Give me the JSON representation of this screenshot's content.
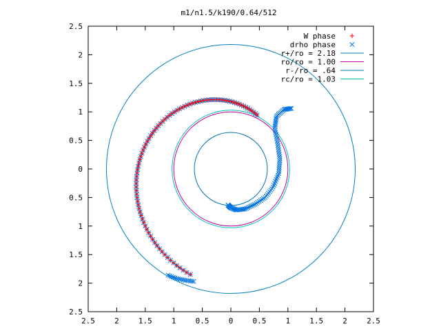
{
  "chart_data": {
    "type": "scatter",
    "title": "m1/n1.5/k190/0.64/512",
    "xlim": [
      -2.5,
      2.5
    ],
    "ylim": [
      -2.5,
      2.5
    ],
    "xticks": [
      "2.5",
      "2",
      "1.5",
      "1",
      "0.5",
      "0",
      "0.5",
      "1",
      "1.5",
      "2",
      "2.5"
    ],
    "yticks": [
      "2.5",
      "2",
      "1.5",
      "1",
      "0.5",
      "0",
      "0.5",
      "1",
      "1.5",
      "2",
      "2.5"
    ],
    "grid": false,
    "legend_position": "top-right",
    "series": [
      {
        "name": "W phase",
        "kind": "points",
        "marker": "plus",
        "color": "#ff0000",
        "arc": {
          "r_start": 1.05,
          "r_end": 1.98,
          "theta_start_deg": 64,
          "theta_end_deg": 249,
          "count": 90
        }
      },
      {
        "name": "drho phase",
        "kind": "points",
        "marker": "cross",
        "color": "#0072e0",
        "hook": [
          [
            -0.05,
            -0.63
          ],
          [
            0.0,
            -0.68
          ],
          [
            0.1,
            -0.72
          ],
          [
            0.25,
            -0.7
          ],
          [
            0.42,
            -0.62
          ],
          [
            0.6,
            -0.5
          ],
          [
            0.74,
            -0.32
          ],
          [
            0.84,
            -0.08
          ],
          [
            0.86,
            0.18
          ],
          [
            0.82,
            0.45
          ],
          [
            0.77,
            0.72
          ],
          [
            0.8,
            0.92
          ],
          [
            0.93,
            1.04
          ],
          [
            1.06,
            1.06
          ]
        ],
        "tail": [
          [
            -1.1,
            -1.86
          ],
          [
            -0.95,
            -1.92
          ],
          [
            -0.8,
            -1.95
          ],
          [
            -0.65,
            -1.97
          ]
        ],
        "arc": {
          "r_start": 1.05,
          "r_end": 1.98,
          "theta_start_deg": 64,
          "theta_end_deg": 249,
          "count": 90
        }
      },
      {
        "name": "r+/ro = 2.18",
        "kind": "circle",
        "r": 2.18,
        "color": "#0080c0"
      },
      {
        "name": "ro/ro = 1.00",
        "kind": "circle",
        "r": 1.0,
        "color": "#c000a0"
      },
      {
        "name": "r-/ro = .64",
        "kind": "circle",
        "r": 0.64,
        "color": "#0070b0"
      },
      {
        "name": "rc/ro = 1.03",
        "kind": "circle",
        "r": 1.03,
        "color": "#00c0c0"
      }
    ]
  }
}
